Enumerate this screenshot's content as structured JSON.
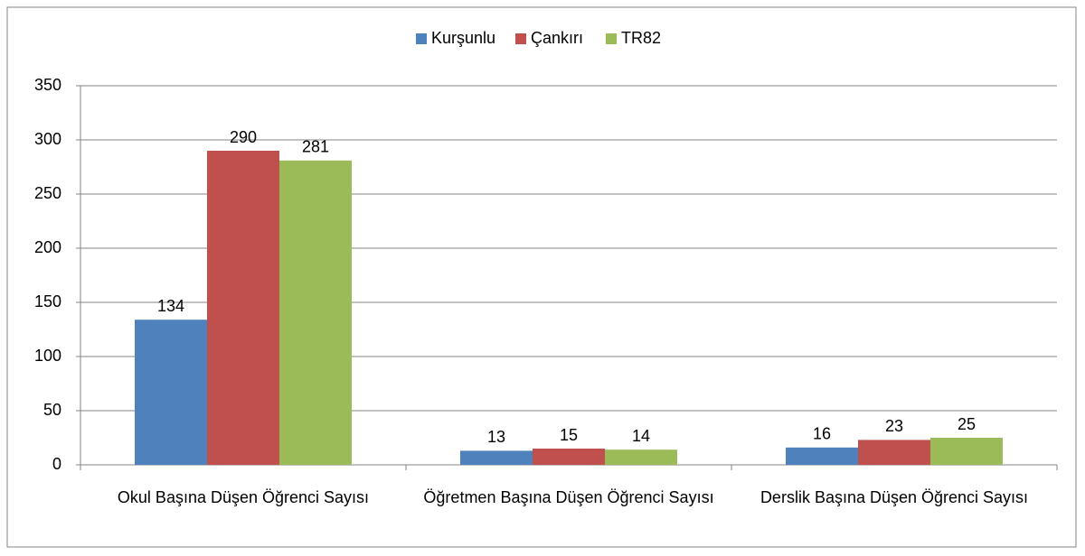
{
  "chart_data": {
    "type": "bar",
    "categories": [
      "Okul Başına Düşen Öğrenci Sayısı",
      "Öğretmen Başına Düşen Öğrenci Sayısı",
      "Derslik Başına Düşen Öğrenci Sayısı"
    ],
    "series": [
      {
        "name": "Kurşunlu",
        "color": "#4f81bd",
        "values": [
          134,
          13,
          16
        ]
      },
      {
        "name": "Çankırı",
        "color": "#c0504d",
        "values": [
          290,
          15,
          23
        ]
      },
      {
        "name": "TR82",
        "color": "#9bbb59",
        "values": [
          281,
          14,
          25
        ]
      }
    ],
    "ylim": [
      0,
      350
    ],
    "yticks": [
      0,
      50,
      100,
      150,
      200,
      250,
      300,
      350
    ],
    "grid": true,
    "legend": "top"
  }
}
